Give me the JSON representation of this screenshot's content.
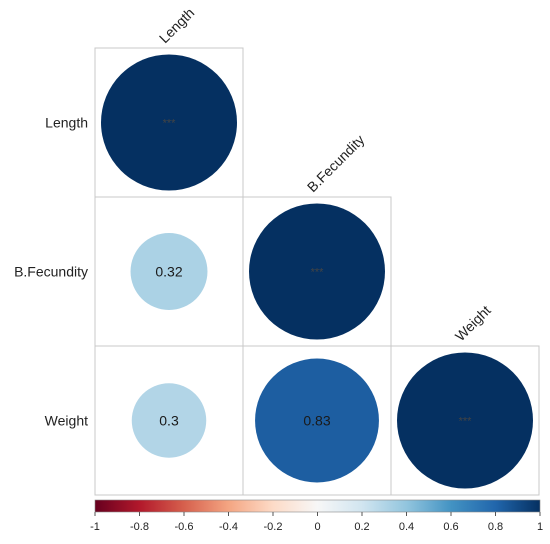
{
  "chart_data": {
    "type": "heatmap",
    "variables": [
      "Length",
      "B.Fecundity",
      "Weight"
    ],
    "matrix_shape": "lower-triangle",
    "cells": [
      {
        "row": "Length",
        "col": "Length",
        "value": 1,
        "label": "***"
      },
      {
        "row": "B.Fecundity",
        "col": "Length",
        "value": 0.32,
        "label": "0.32"
      },
      {
        "row": "B.Fecundity",
        "col": "B.Fecundity",
        "value": 1,
        "label": "***"
      },
      {
        "row": "Weight",
        "col": "Length",
        "value": 0.3,
        "label": "0.3"
      },
      {
        "row": "Weight",
        "col": "B.Fecundity",
        "value": 0.83,
        "label": "0.83"
      },
      {
        "row": "Weight",
        "col": "Weight",
        "value": 1,
        "label": "***"
      }
    ],
    "colorbar": {
      "range": [
        -1,
        1
      ],
      "ticks": [
        "-1",
        "-0.8",
        "-0.6",
        "-0.4",
        "-0.2",
        "0",
        "0.2",
        "0.4",
        "0.6",
        "0.8",
        "1"
      ],
      "palette": [
        "#67001f",
        "#b2182b",
        "#d6604d",
        "#f4a582",
        "#fddbc7",
        "#f7f7f7",
        "#d1e5f0",
        "#92c5de",
        "#4393c3",
        "#2166ac",
        "#053061"
      ]
    },
    "title": "",
    "xlabel": "",
    "ylabel": ""
  }
}
